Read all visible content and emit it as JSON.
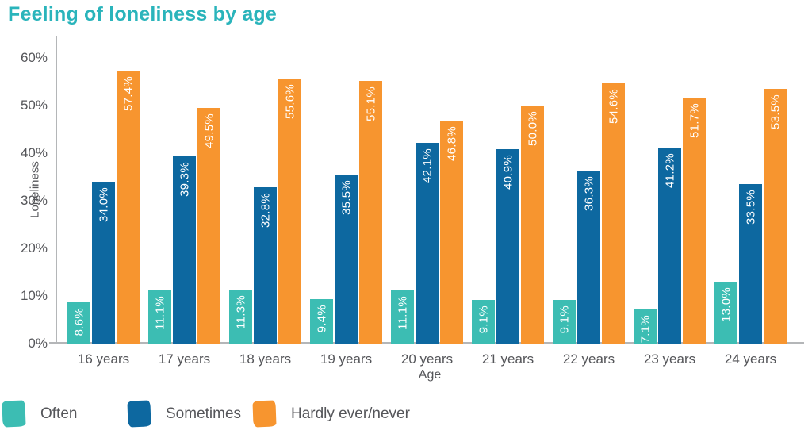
{
  "title": "Feeling of loneliness by age",
  "colors": {
    "title": "#2ab4bb",
    "axis_text": "#55565a",
    "axis_line": "#b4b6b8",
    "bar_label_text": "#ffffff",
    "often": "#3cbdb3",
    "sometimes": "#0d68a0",
    "hardly_ever_never": "#f7952f"
  },
  "chart_data": {
    "type": "bar",
    "title": "Feeling of loneliness by age",
    "categories": [
      "16 years",
      "17 years",
      "18 years",
      "19 years",
      "20 years",
      "21 years",
      "22 years",
      "23 years",
      "24 years"
    ],
    "series": [
      {
        "name": "Often",
        "color": "#3cbdb3",
        "values": [
          8.6,
          11.1,
          11.3,
          9.4,
          11.1,
          9.1,
          9.1,
          7.1,
          13.0
        ],
        "labels": [
          "8.6%",
          "11.1%",
          "11.3%",
          "9.4%",
          "11.1%",
          "9.1%",
          "9.1%",
          "7.1%",
          "13.0%"
        ]
      },
      {
        "name": "Sometimes",
        "color": "#0d68a0",
        "values": [
          34.0,
          39.3,
          32.8,
          35.5,
          42.1,
          40.9,
          36.3,
          41.2,
          33.5
        ],
        "labels": [
          "34.0%",
          "39.3%",
          "32.8%",
          "35.5%",
          "42.1%",
          "40.9%",
          "36.3%",
          "41.2%",
          "33.5%"
        ]
      },
      {
        "name": "Hardly ever/never",
        "color": "#f7952f",
        "values": [
          57.4,
          49.5,
          55.6,
          55.1,
          46.8,
          50.0,
          54.6,
          51.7,
          53.5
        ],
        "labels": [
          "57.4%",
          "49.5%",
          "55.6%",
          "55.1%",
          "46.8%",
          "50.0%",
          "54.6%",
          "51.7%",
          "53.5%"
        ]
      }
    ],
    "xlabel": "Age",
    "ylabel": "Loneliness",
    "ylim": [
      0,
      60
    ],
    "yticks": [
      {
        "value": 0,
        "label": "0%"
      },
      {
        "value": 10,
        "label": "10%"
      },
      {
        "value": 20,
        "label": "20%"
      },
      {
        "value": 30,
        "label": "30%"
      },
      {
        "value": 40,
        "label": "40%"
      },
      {
        "value": 50,
        "label": "50%"
      },
      {
        "value": 60,
        "label": "60%"
      }
    ],
    "grid": false,
    "legend_position": "bottom",
    "value_labels": "inside-top-rotated"
  },
  "legend": {
    "items": [
      {
        "label": "Often",
        "color": "#3cbdb3"
      },
      {
        "label": "Sometimes",
        "color": "#0d68a0"
      },
      {
        "label": "Hardly ever/never",
        "color": "#f7952f"
      }
    ]
  }
}
